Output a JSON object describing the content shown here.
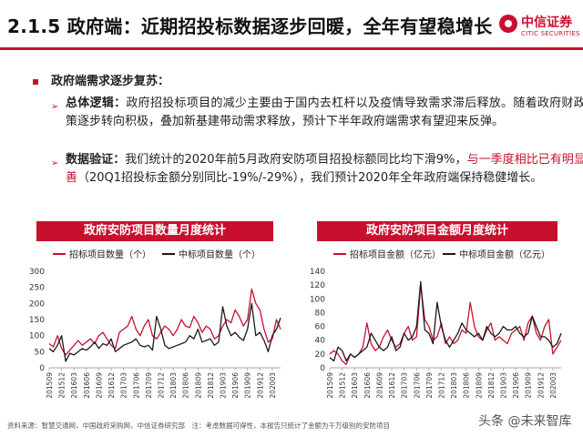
{
  "header": {
    "title": "2.1.5 政府端：近期招投标数据逐步回暖，全年有望稳增长",
    "logo_cn": "中信证券",
    "logo_en": "CITIC SECURITIES"
  },
  "body": {
    "heading": "政府端需求逐步复苏：",
    "logic_label": "总体逻辑：",
    "logic_text": "政府招投标项目的减少主要由于国内去杠杆以及疫情导致需求滞后释放。随着政府财政政策逐步转向积极，叠加新基建带动需求释放，预计下半年政府端需求有望迎来反弹。",
    "verify_label": "数据验证：",
    "verify_text_a": "我们统计的2020年前5月政府安防项目招投标额同比均下滑9%，",
    "verify_text_red": "与一季度相比已有明显改善",
    "verify_text_b": "（20Q1招投标金额分别同比-19%/-29%），我们预计2020年全年政府端保持稳健增长。"
  },
  "footer": {
    "source": "资料来源：智慧交通网，中国政府采购网，中信证券研究部　注：考虑数据可得性，本报告只统计了金额为千万级别的安防项目",
    "watermark": "头条 @未来智库"
  },
  "colors": {
    "accent": "#c8102e",
    "series_bid": "#c8102e",
    "series_win": "#1a1a1a"
  },
  "chart_data": [
    {
      "type": "line",
      "title": "政府安防项目数量月度统计",
      "x": [
        "201509",
        "201510",
        "201511",
        "201512",
        "201601",
        "201602",
        "201603",
        "201604",
        "201605",
        "201606",
        "201607",
        "201608",
        "201609",
        "201610",
        "201611",
        "201612",
        "201701",
        "201702",
        "201703",
        "201704",
        "201705",
        "201706",
        "201707",
        "201708",
        "201709",
        "201710",
        "201711",
        "201712",
        "201801",
        "201802",
        "201803",
        "201804",
        "201805",
        "201806",
        "201807",
        "201808",
        "201809",
        "201810",
        "201811",
        "201812",
        "201901",
        "201902",
        "201903",
        "201904",
        "201905",
        "201906",
        "201907",
        "201908",
        "201909",
        "201910",
        "201911",
        "201912",
        "202001",
        "202002",
        "202003",
        "202004",
        "202005"
      ],
      "x_tick_labels": [
        "201509",
        "201512",
        "201603",
        "201606",
        "201609",
        "201612",
        "201703",
        "201706",
        "201709",
        "201712",
        "201803",
        "201806",
        "201809",
        "201812",
        "201903",
        "201906",
        "201909",
        "201912",
        "202003"
      ],
      "series": [
        {
          "name": "招标项目数量（个）",
          "values": [
            75,
            65,
            100,
            60,
            40,
            55,
            70,
            85,
            70,
            80,
            90,
            75,
            100,
            110,
            90,
            70,
            60,
            110,
            120,
            130,
            160,
            120,
            100,
            130,
            150,
            100,
            90,
            110,
            130,
            120,
            100,
            120,
            150,
            130,
            125,
            160,
            140,
            110,
            130,
            120,
            90,
            100,
            130,
            150,
            140,
            180,
            160,
            130,
            150,
            245,
            200,
            180,
            120,
            80,
            90,
            150,
            120
          ]
        },
        {
          "name": "中标项目数量（个）",
          "values": [
            60,
            50,
            70,
            100,
            20,
            45,
            40,
            50,
            60,
            55,
            65,
            80,
            60,
            75,
            70,
            90,
            50,
            60,
            70,
            75,
            80,
            90,
            70,
            65,
            70,
            55,
            160,
            120,
            70,
            60,
            65,
            70,
            75,
            80,
            100,
            90,
            120,
            80,
            85,
            90,
            70,
            80,
            190,
            130,
            100,
            110,
            95,
            85,
            120,
            200,
            100,
            110,
            85,
            50,
            100,
            120,
            155
          ]
        }
      ],
      "ylim": [
        0,
        300
      ],
      "yticks": [
        0,
        50,
        100,
        150,
        200,
        250,
        300
      ],
      "legend": "top-left"
    },
    {
      "type": "line",
      "title": "政府安防项目金额月度统计",
      "x": [
        "201509",
        "201510",
        "201511",
        "201512",
        "201601",
        "201602",
        "201603",
        "201604",
        "201605",
        "201606",
        "201607",
        "201608",
        "201609",
        "201610",
        "201611",
        "201612",
        "201701",
        "201702",
        "201703",
        "201704",
        "201705",
        "201706",
        "201707",
        "201708",
        "201709",
        "201710",
        "201711",
        "201712",
        "201801",
        "201802",
        "201803",
        "201804",
        "201805",
        "201806",
        "201807",
        "201808",
        "201809",
        "201810",
        "201811",
        "201812",
        "201901",
        "201902",
        "201903",
        "201904",
        "201905",
        "201906",
        "201907",
        "201908",
        "201909",
        "201910",
        "201911",
        "201912",
        "202001",
        "202002",
        "202003",
        "202004",
        "202005"
      ],
      "x_tick_labels": [
        "201509",
        "201512",
        "201603",
        "201606",
        "201609",
        "201612",
        "201703",
        "201706",
        "201709",
        "201712",
        "201803",
        "201806",
        "201809",
        "201812",
        "201903",
        "201906",
        "201909",
        "201912",
        "202003"
      ],
      "series": [
        {
          "name": "招标项目金额（亿元）",
          "values": [
            20,
            25,
            20,
            10,
            5,
            20,
            15,
            20,
            30,
            65,
            35,
            25,
            30,
            45,
            55,
            40,
            30,
            35,
            50,
            60,
            40,
            45,
            120,
            70,
            60,
            40,
            45,
            65,
            35,
            45,
            35,
            40,
            55,
            50,
            95,
            60,
            45,
            40,
            55,
            65,
            40,
            45,
            40,
            35,
            50,
            55,
            60,
            40,
            65,
            75,
            50,
            40,
            60,
            70,
            20,
            30,
            40
          ]
        },
        {
          "name": "中标项目金额（亿元）",
          "values": [
            15,
            10,
            30,
            25,
            10,
            20,
            15,
            20,
            25,
            30,
            50,
            40,
            30,
            25,
            30,
            45,
            25,
            30,
            50,
            40,
            45,
            60,
            125,
            55,
            50,
            35,
            95,
            60,
            40,
            30,
            40,
            50,
            65,
            55,
            50,
            45,
            50,
            40,
            60,
            50,
            45,
            50,
            60,
            55,
            55,
            60,
            50,
            45,
            50,
            75,
            60,
            45,
            45,
            40,
            30,
            35,
            50
          ]
        }
      ],
      "ylim": [
        0,
        140
      ],
      "yticks": [
        0,
        20,
        40,
        60,
        80,
        100,
        120,
        140
      ],
      "legend": "top-left"
    }
  ]
}
